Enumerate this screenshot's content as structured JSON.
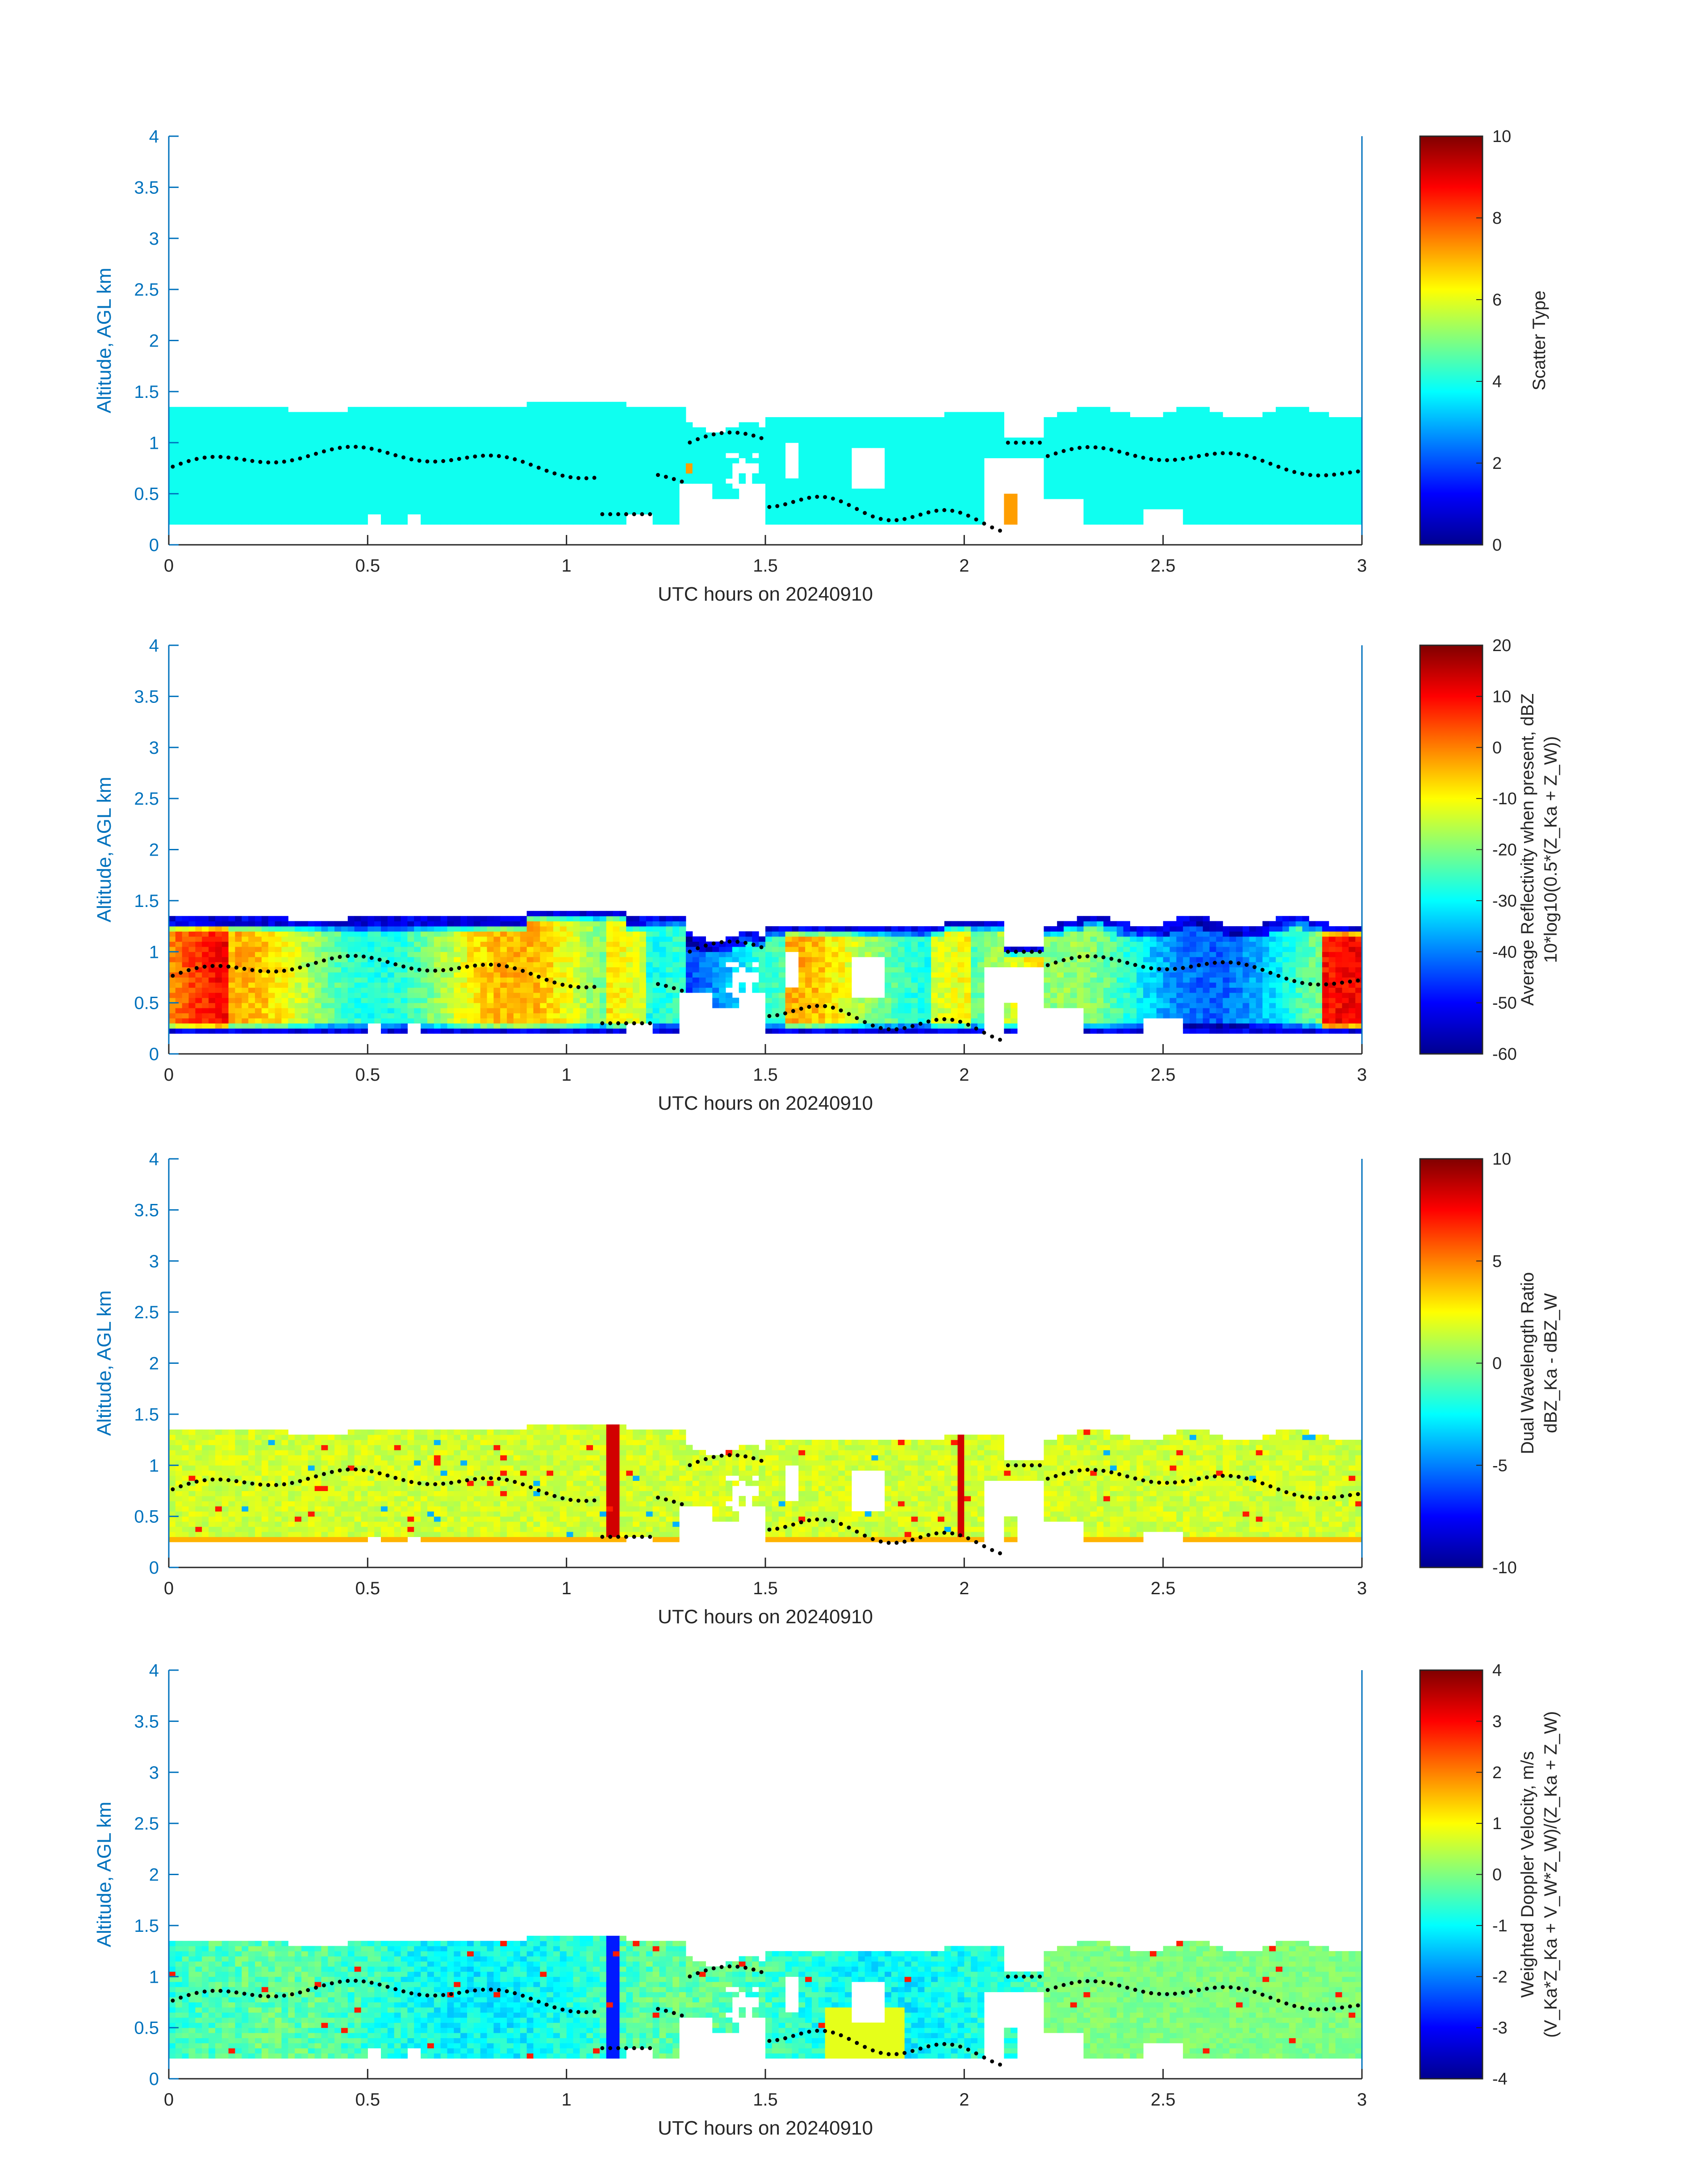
{
  "colors": {
    "axis": "#0072bd",
    "text": "#262626",
    "contour_dots": "#000000",
    "colormap": "jet"
  },
  "chart_data": [
    {
      "type": "heatmap",
      "title": "",
      "xlabel": "UTC hours on 20240910",
      "ylabel": "Altitude, AGL km",
      "xlim": [
        0,
        3
      ],
      "ylim": [
        0,
        4
      ],
      "x_ticks": [
        "0",
        "0.5",
        "1",
        "1.5",
        "2",
        "2.5",
        "3"
      ],
      "y_ticks": [
        "0",
        "0.5",
        "1",
        "1.5",
        "2",
        "2.5",
        "3",
        "3.5",
        "4"
      ],
      "colorbar": {
        "label_lines": [
          "Scatter Type"
        ],
        "range": [
          0,
          10
        ],
        "ticks": [
          "0",
          "2",
          "4",
          "6",
          "8",
          "10"
        ]
      },
      "field": "scatter_type",
      "dominant_value": 4,
      "cloud_base_km": 0.2,
      "cloud_top_km": 1.35
    },
    {
      "type": "heatmap",
      "title": "",
      "xlabel": "UTC hours on 20240910",
      "ylabel": "Altitude, AGL km",
      "xlim": [
        0,
        3
      ],
      "ylim": [
        0,
        4
      ],
      "x_ticks": [
        "0",
        "0.5",
        "1",
        "1.5",
        "2",
        "2.5",
        "3"
      ],
      "y_ticks": [
        "0",
        "0.5",
        "1",
        "1.5",
        "2",
        "2.5",
        "3",
        "3.5",
        "4"
      ],
      "colorbar": {
        "label_lines": [
          "Average Reflectivity when present, dBZ",
          "10*log10(0.5*(Z_Ka + Z_W))"
        ],
        "range": [
          -60,
          20
        ],
        "ticks": [
          "-60",
          "-50",
          "-40",
          "-30",
          "-20",
          "-10",
          "0",
          "10",
          "20"
        ]
      },
      "field": "reflectivity",
      "cloud_base_km": 0.2,
      "cloud_top_km": 1.35
    },
    {
      "type": "heatmap",
      "title": "",
      "xlabel": "UTC hours on 20240910",
      "ylabel": "Altitude, AGL km",
      "xlim": [
        0,
        3
      ],
      "ylim": [
        0,
        4
      ],
      "x_ticks": [
        "0",
        "0.5",
        "1",
        "1.5",
        "2",
        "2.5",
        "3"
      ],
      "y_ticks": [
        "0",
        "0.5",
        "1",
        "1.5",
        "2",
        "2.5",
        "3",
        "3.5",
        "4"
      ],
      "colorbar": {
        "label_lines": [
          "Dual Wavelength Ratio",
          "dBZ_Ka - dBZ_W"
        ],
        "range": [
          -10,
          10
        ],
        "ticks": [
          "-10",
          "-5",
          "0",
          "5",
          "10"
        ]
      },
      "field": "dwr",
      "cloud_base_km": 0.25,
      "cloud_top_km": 1.3
    },
    {
      "type": "heatmap",
      "title": "",
      "xlabel": "UTC hours on 20240910",
      "ylabel": "Altitude, AGL km",
      "xlim": [
        0,
        3
      ],
      "ylim": [
        0,
        4
      ],
      "x_ticks": [
        "0",
        "0.5",
        "1",
        "1.5",
        "2",
        "2.5",
        "3"
      ],
      "y_ticks": [
        "0",
        "0.5",
        "1",
        "1.5",
        "2",
        "2.5",
        "3",
        "3.5",
        "4"
      ],
      "colorbar": {
        "label_lines": [
          "Weighted Doppler Velocity, m/s",
          "(V_Ka*Z_Ka + V_W*Z_W)/(Z_Ka + Z_W)"
        ],
        "range": [
          -4,
          4
        ],
        "ticks": [
          "-4",
          "-3",
          "-2",
          "-1",
          "0",
          "1",
          "2",
          "3",
          "4"
        ]
      },
      "field": "velocity",
      "cloud_base_km": 0.2,
      "cloud_top_km": 1.35
    }
  ]
}
